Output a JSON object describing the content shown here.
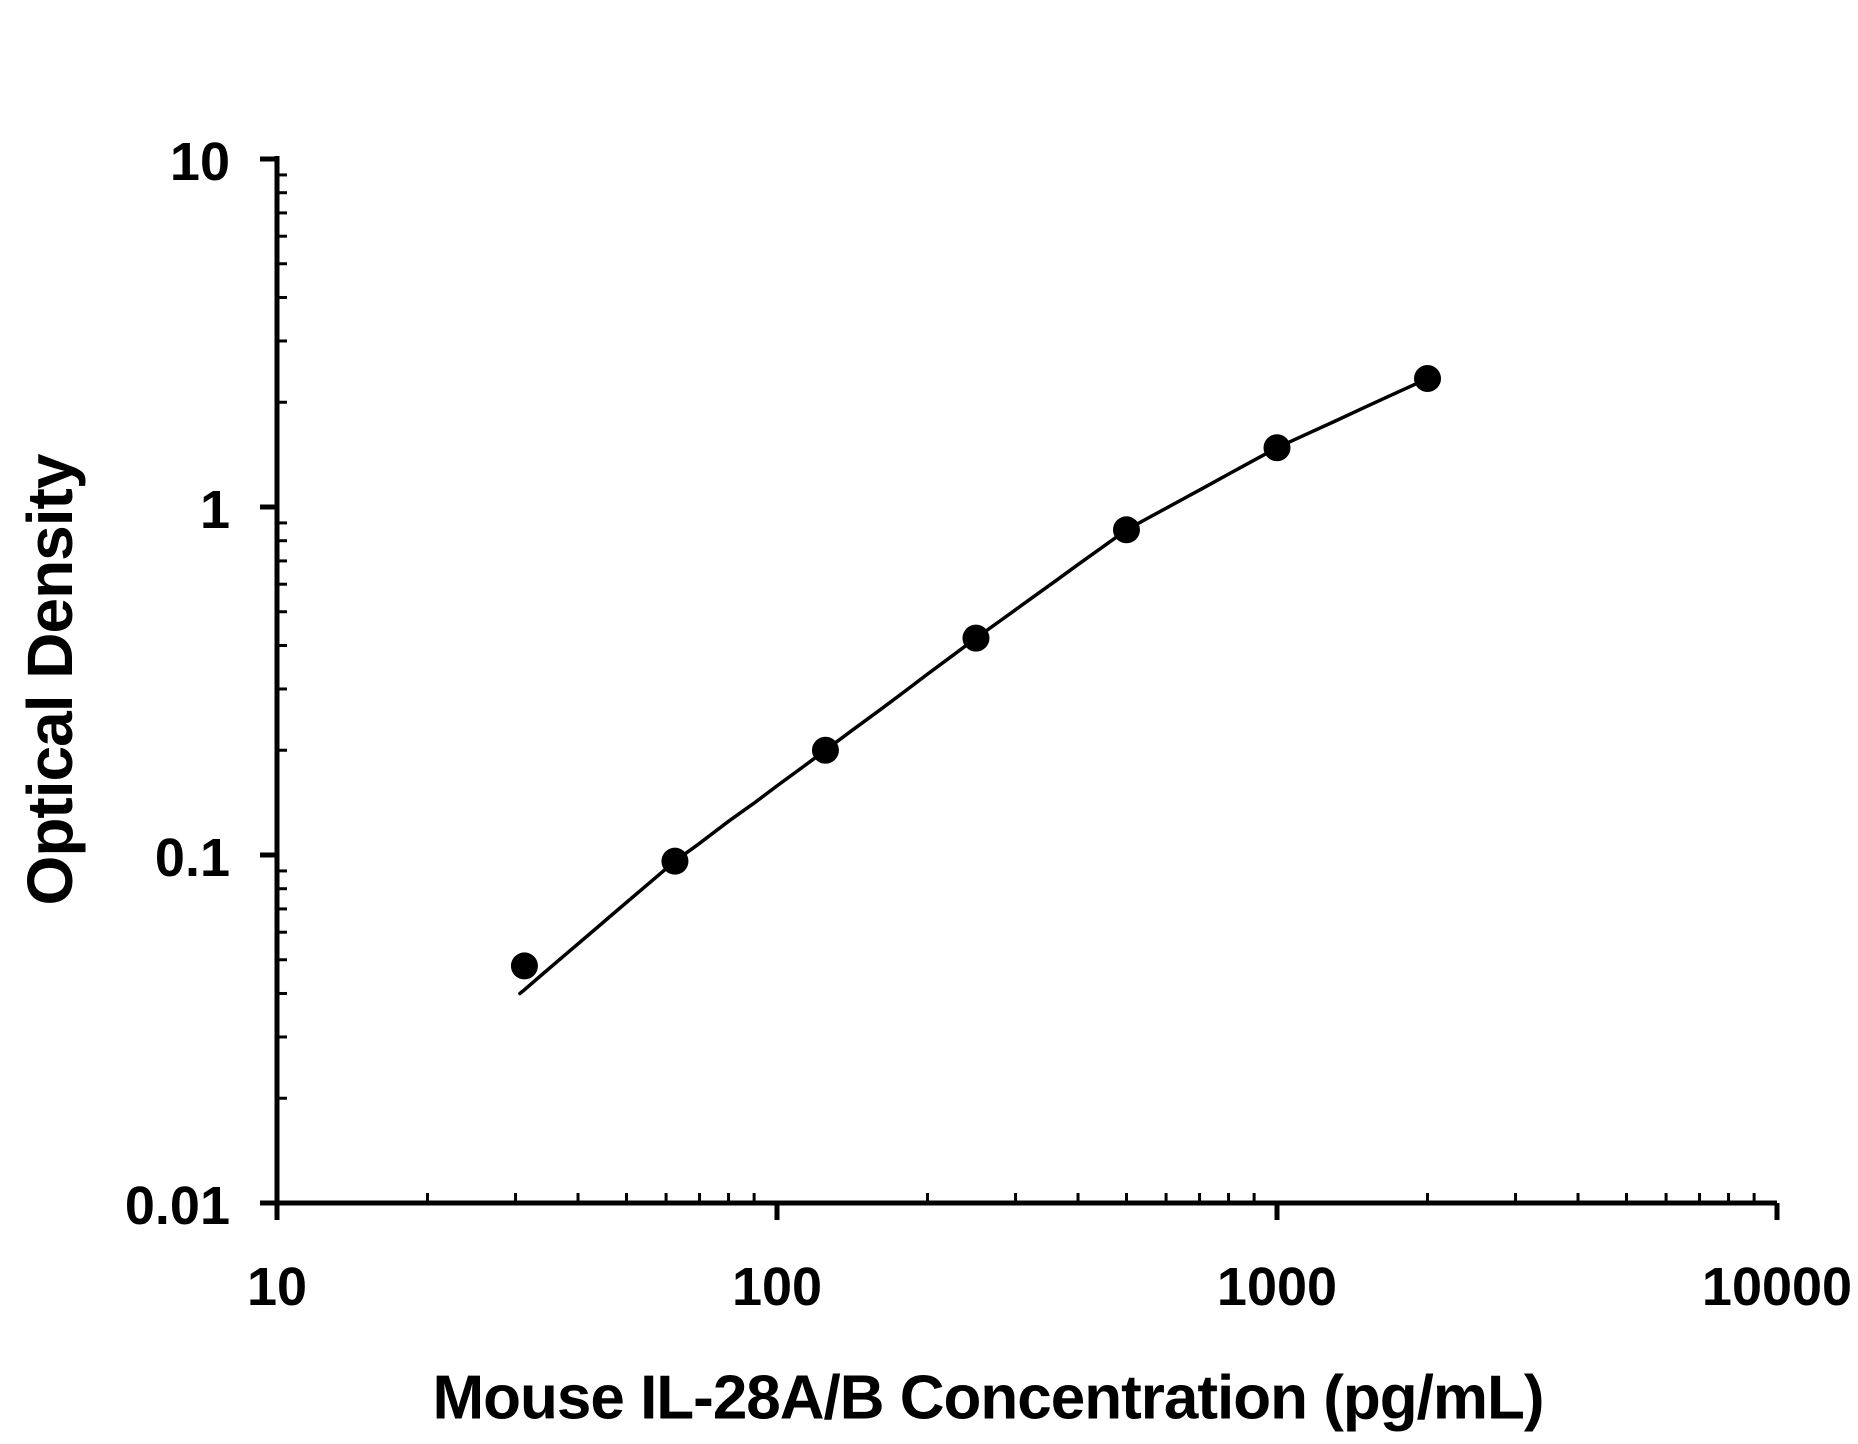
{
  "figure": {
    "background_color": "#ffffff",
    "foreground_color": "#000000"
  },
  "chart_data": {
    "type": "scatter",
    "title": "",
    "xlabel": "Mouse IL-28A/B Concentration (pg/mL)",
    "ylabel": "Optical Density",
    "x_scale": "log",
    "y_scale": "log",
    "xlim": [
      10,
      10000
    ],
    "ylim": [
      0.01,
      10
    ],
    "grid": false,
    "legend_position": "none",
    "marker_color": "#000000",
    "line_color": "#000000",
    "x_ticks": [
      {
        "label": "10",
        "value": 10
      },
      {
        "label": "100",
        "value": 100
      },
      {
        "label": "1000",
        "value": 1000
      },
      {
        "label": "10000",
        "value": 10000
      }
    ],
    "y_ticks": [
      {
        "label": "10",
        "value": 10
      },
      {
        "label": "1",
        "value": 1
      },
      {
        "label": "0.1",
        "value": 0.1
      },
      {
        "label": "0.01",
        "value": 0.01
      }
    ],
    "points": [
      {
        "concentration_pg_ml": 31.25,
        "od": 0.048
      },
      {
        "concentration_pg_ml": 62.5,
        "od": 0.096
      },
      {
        "concentration_pg_ml": 125,
        "od": 0.2
      },
      {
        "concentration_pg_ml": 250,
        "od": 0.42
      },
      {
        "concentration_pg_ml": 500,
        "od": 0.86
      },
      {
        "concentration_pg_ml": 1000,
        "od": 1.48
      },
      {
        "concentration_pg_ml": 2000,
        "od": 2.34
      }
    ],
    "curve": [
      [
        30.6,
        0.04
      ],
      [
        31.25,
        0.041
      ],
      [
        34,
        0.0455
      ],
      [
        38,
        0.0522
      ],
      [
        43,
        0.0607
      ],
      [
        48,
        0.0695
      ],
      [
        55,
        0.0821
      ],
      [
        62.5,
        0.096
      ],
      [
        70,
        0.108
      ],
      [
        80,
        0.125
      ],
      [
        90,
        0.141
      ],
      [
        100,
        0.158
      ],
      [
        112,
        0.178
      ],
      [
        125,
        0.2
      ],
      [
        140,
        0.226
      ],
      [
        160,
        0.26
      ],
      [
        180,
        0.295
      ],
      [
        200,
        0.331
      ],
      [
        225,
        0.375
      ],
      [
        250,
        0.42
      ],
      [
        280,
        0.472
      ],
      [
        320,
        0.542
      ],
      [
        360,
        0.612
      ],
      [
        400,
        0.683
      ],
      [
        450,
        0.771
      ],
      [
        500,
        0.86
      ],
      [
        560,
        0.94
      ],
      [
        640,
        1.043
      ],
      [
        720,
        1.144
      ],
      [
        800,
        1.243
      ],
      [
        900,
        1.363
      ],
      [
        1000,
        1.48
      ],
      [
        1150,
        1.623
      ],
      [
        1300,
        1.76
      ],
      [
        1500,
        1.935
      ],
      [
        1700,
        2.102
      ],
      [
        1850,
        2.223
      ],
      [
        2000,
        2.34
      ]
    ]
  }
}
